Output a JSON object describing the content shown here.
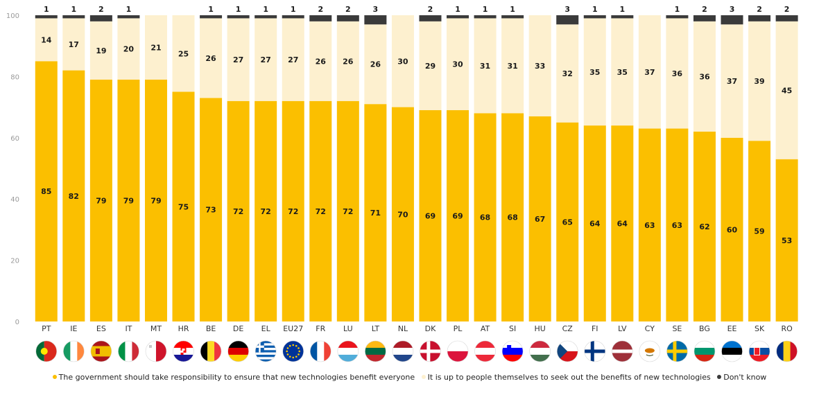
{
  "chart_data": {
    "type": "bar",
    "stacked": true,
    "categories": [
      "PT",
      "IE",
      "ES",
      "IT",
      "MT",
      "HR",
      "BE",
      "DE",
      "EL",
      "EU27",
      "FR",
      "LU",
      "LT",
      "NL",
      "DK",
      "PL",
      "AT",
      "SI",
      "HU",
      "CZ",
      "FI",
      "LV",
      "CY",
      "SE",
      "BG",
      "EE",
      "SK",
      "RO"
    ],
    "series": [
      {
        "name": "The government should take responsibility to ensure that new technologies benefit everyone",
        "color": "#FBBF00",
        "values": [
          85,
          82,
          79,
          79,
          79,
          75,
          73,
          72,
          72,
          72,
          72,
          72,
          71,
          70,
          69,
          69,
          68,
          68,
          67,
          65,
          64,
          64,
          63,
          63,
          62,
          60,
          59,
          53
        ],
        "labels": [
          "85",
          "82",
          "79",
          "79",
          "79",
          "75",
          "73",
          "72",
          "72",
          "72",
          "72",
          "72",
          "71",
          "70",
          "69",
          "69",
          "68",
          "68",
          "67",
          "65",
          "64",
          "64",
          "63",
          "63",
          "62",
          "60",
          "59",
          "53"
        ]
      },
      {
        "name": "It is up to people themselves to seek out the benefits of new technologies",
        "color": "#FDF0CF",
        "values": [
          14,
          17,
          19,
          20,
          21,
          25,
          26,
          27,
          27,
          27,
          26,
          26,
          26,
          30,
          29,
          30,
          31,
          31,
          33,
          32,
          35,
          35,
          37,
          36,
          36,
          37,
          39,
          45
        ],
        "labels": [
          "14",
          "17",
          "19",
          "20",
          "21",
          "25",
          "26",
          "27",
          "27",
          "27",
          "26",
          "26",
          "26",
          "30",
          "29",
          "30",
          "31",
          "31",
          "33",
          "32",
          "35",
          "35",
          "37",
          "36",
          "36",
          "37",
          "39",
          "45"
        ]
      },
      {
        "name": "Don't know",
        "color": "#3A3A3A",
        "values": [
          1,
          1,
          2,
          1,
          0,
          0,
          1,
          1,
          1,
          1,
          2,
          2,
          3,
          0,
          2,
          1,
          1,
          1,
          0,
          3,
          1,
          1,
          0,
          1,
          2,
          3,
          2,
          2
        ],
        "labels": [
          "1",
          "1",
          "2",
          "1",
          "",
          "",
          "1",
          "1",
          "1",
          "1",
          "2",
          "2",
          "3",
          "",
          "2",
          "1",
          "1",
          "1",
          "",
          "3",
          "1",
          "1",
          "",
          "1",
          "2",
          "3",
          "2",
          "2"
        ]
      }
    ],
    "yticks": [
      "0",
      "20",
      "40",
      "60",
      "80",
      "100"
    ],
    "ylim": [
      0,
      100
    ],
    "grid": false,
    "legend_position": "bottom"
  },
  "flag_icons": [
    "flag-pt-icon",
    "flag-ie-icon",
    "flag-es-icon",
    "flag-it-icon",
    "flag-mt-icon",
    "flag-hr-icon",
    "flag-be-icon",
    "flag-de-icon",
    "flag-el-icon",
    "flag-eu27-icon",
    "flag-fr-icon",
    "flag-lu-icon",
    "flag-lt-icon",
    "flag-nl-icon",
    "flag-dk-icon",
    "flag-pl-icon",
    "flag-at-icon",
    "flag-si-icon",
    "flag-hu-icon",
    "flag-cz-icon",
    "flag-fi-icon",
    "flag-lv-icon",
    "flag-cy-icon",
    "flag-se-icon",
    "flag-bg-icon",
    "flag-ee-icon",
    "flag-sk-icon",
    "flag-ro-icon"
  ],
  "legend": [
    {
      "label": "The government should take responsibility to ensure that new technologies benefit everyone",
      "color": "#FBBF00"
    },
    {
      "label": "It is up to people themselves to seek out the benefits of new technologies",
      "color": "#FDF0CF"
    },
    {
      "label": "Don't know",
      "color": "#3A3A3A"
    }
  ]
}
